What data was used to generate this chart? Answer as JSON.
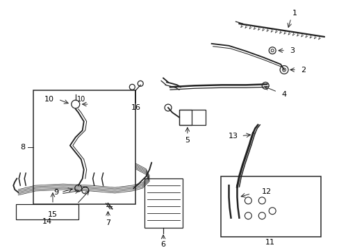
{
  "background_color": "#ffffff",
  "line_color": "#222222",
  "label_color": "#000000",
  "fig_width": 4.89,
  "fig_height": 3.6,
  "dpi": 100,
  "label_fontsize": 8.0,
  "lw": 0.9
}
